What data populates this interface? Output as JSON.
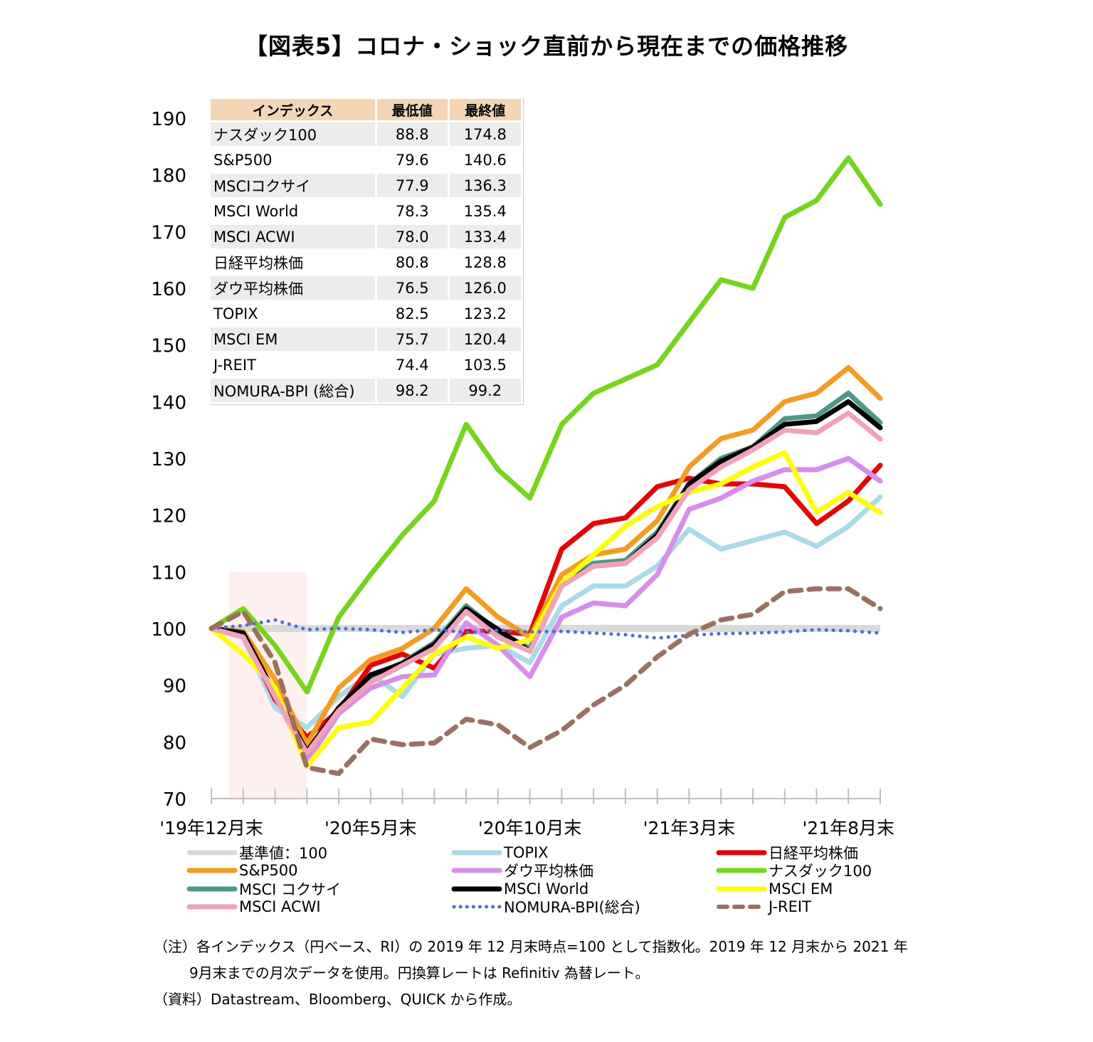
{
  "title": "【図表5】コロナ・ショック直前から現在までの価格推移",
  "table": {
    "headers": [
      "インデックス",
      "最低値",
      "最終値"
    ],
    "rows": [
      [
        "ナスダック100",
        "88.8",
        "174.8"
      ],
      [
        "S&P500",
        "79.6",
        "140.6"
      ],
      [
        "MSCIコクサイ",
        "77.9",
        "136.3"
      ],
      [
        "MSCI World",
        "78.3",
        "135.4"
      ],
      [
        "MSCI ACWI",
        "78.0",
        "133.4"
      ],
      [
        "日経平均株価",
        "80.8",
        "128.8"
      ],
      [
        "ダウ平均株価",
        "76.5",
        "126.0"
      ],
      [
        "TOPIX",
        "82.5",
        "123.2"
      ],
      [
        "MSCI EM",
        "75.7",
        "120.4"
      ],
      [
        "J-REIT",
        "74.4",
        "103.5"
      ],
      [
        "NOMURA-BPI (総合)",
        "98.2",
        "99.2"
      ]
    ]
  },
  "chart_data": {
    "type": "line",
    "ylim": [
      70,
      190
    ],
    "yticks": [
      70,
      80,
      90,
      100,
      110,
      120,
      130,
      140,
      150,
      160,
      170,
      180,
      190
    ],
    "x": [
      "2019-12",
      "2020-01",
      "2020-02",
      "2020-03",
      "2020-04",
      "2020-05",
      "2020-06",
      "2020-07",
      "2020-08",
      "2020-09",
      "2020-10",
      "2020-11",
      "2020-12",
      "2021-01",
      "2021-02",
      "2021-03",
      "2021-04",
      "2021-05",
      "2021-06",
      "2021-07",
      "2021-08",
      "2021-09"
    ],
    "xtick_labels": [
      {
        "index": 0,
        "label": "'19年12月末"
      },
      {
        "index": 5,
        "label": "'20年5月末"
      },
      {
        "index": 10,
        "label": "'20年10月末"
      },
      {
        "index": 15,
        "label": "'21年3月末"
      },
      {
        "index": 20,
        "label": "'21年8月末"
      }
    ],
    "shaded_range": {
      "x_start": "2020-01",
      "x_end": "2020-03",
      "y_top": 110,
      "color": "#fdf0ee"
    },
    "grid": false,
    "series": [
      {
        "name": "基準値：100",
        "color": "#d9d9d9",
        "style": "solid",
        "values": [
          100,
          100,
          100,
          100,
          100,
          100,
          100,
          100,
          100,
          100,
          100,
          100,
          100,
          100,
          100,
          100,
          100,
          100,
          100,
          100,
          100,
          100
        ]
      },
      {
        "name": "TOPIX",
        "color": "#a6dbe8",
        "style": "solid",
        "values": [
          100,
          98.5,
          86,
          82.5,
          88,
          92,
          88,
          95.5,
          96.5,
          97,
          94,
          104,
          107.5,
          107.5,
          111,
          117.5,
          114,
          115.5,
          117,
          114.5,
          118,
          123.2
        ]
      },
      {
        "name": "日経平均株価",
        "color": "#ee0000",
        "style": "solid",
        "values": [
          100,
          99,
          87.5,
          80.8,
          85.5,
          93.5,
          95.5,
          93,
          99.5,
          99.5,
          99,
          114,
          118.5,
          119.5,
          125,
          126.5,
          125.5,
          125.5,
          125,
          118.5,
          122.5,
          128.8
        ]
      },
      {
        "name": "S&P500",
        "color": "#f89a1c",
        "style": "solid",
        "values": [
          100,
          99.5,
          91,
          79.6,
          89.5,
          94.5,
          96.5,
          100,
          107,
          102,
          98.5,
          109.5,
          113,
          114,
          119,
          128.5,
          133.5,
          135,
          140,
          141.5,
          146,
          140.6
        ]
      },
      {
        "name": "ダウ平均株価",
        "color": "#d88cf0",
        "style": "solid",
        "values": [
          100,
          98.5,
          88.5,
          76.5,
          85,
          89.5,
          91.5,
          91.8,
          101,
          97,
          91.5,
          102,
          104.5,
          104,
          109.5,
          121,
          123,
          126,
          128,
          128,
          130,
          126
        ]
      },
      {
        "name": "ナスダック100",
        "color": "#72d815",
        "style": "solid",
        "values": [
          100,
          103.5,
          97,
          88.8,
          102,
          109.5,
          116.5,
          122.5,
          136,
          128,
          123,
          136,
          141.5,
          144,
          146.5,
          154,
          161.5,
          160,
          172.5,
          175.5,
          183,
          174.8
        ]
      },
      {
        "name": "MSCI コクサイ",
        "color": "#4a9a8a",
        "style": "solid",
        "values": [
          100,
          99,
          88.5,
          77.9,
          86,
          91.5,
          94,
          97.5,
          104,
          99.5,
          96.5,
          108,
          111.5,
          112,
          117,
          125.5,
          130,
          132,
          137,
          137.5,
          141.5,
          136.3
        ]
      },
      {
        "name": "MSCI World",
        "color": "#000000",
        "style": "solid",
        "values": [
          100,
          99.2,
          88.5,
          78.3,
          86,
          91.8,
          93.8,
          97.2,
          103.5,
          99.8,
          96,
          107.8,
          111,
          111.5,
          116.5,
          125.5,
          129.5,
          132,
          136,
          136.5,
          140,
          135.4
        ]
      },
      {
        "name": "MSCI EM",
        "color": "#ffff00",
        "style": "solid",
        "values": [
          100,
          95.5,
          89.5,
          75.7,
          82.5,
          83.5,
          89.5,
          95.5,
          98.5,
          96.5,
          98,
          108,
          113,
          118,
          121.5,
          124,
          125.5,
          128.5,
          131,
          120.5,
          124,
          120.4
        ]
      },
      {
        "name": "MSCI ACWI",
        "color": "#f4a0b8",
        "style": "solid",
        "values": [
          100,
          98.5,
          88,
          78,
          85.5,
          90.5,
          93.5,
          96.5,
          103,
          98.5,
          96,
          107.5,
          111,
          111.5,
          116,
          124.5,
          128.5,
          131.5,
          135,
          134.5,
          138,
          133.4
        ]
      },
      {
        "name": "NOMURA-BPI(総合)",
        "color": "#4472dd",
        "style": "dotted",
        "values": [
          100,
          100.5,
          101.5,
          99.8,
          100,
          99.8,
          99.3,
          99.8,
          99.3,
          99.7,
          99.4,
          99.5,
          99.2,
          98.9,
          98.3,
          98.8,
          99.1,
          99.2,
          99.4,
          99.8,
          99.6,
          99.2
        ]
      },
      {
        "name": "J-REIT",
        "color": "#9c7060",
        "style": "dashed",
        "values": [
          100,
          103,
          94,
          75.5,
          74.4,
          80.5,
          79.5,
          79.8,
          84,
          83,
          79,
          82,
          86.5,
          90,
          95,
          99,
          101.5,
          102.5,
          106.5,
          107,
          107,
          103.5
        ]
      }
    ]
  },
  "legend": [
    {
      "key": 0,
      "label": "基準値：100"
    },
    {
      "key": 1,
      "label": "TOPIX"
    },
    {
      "key": 2,
      "label": "日経平均株価"
    },
    {
      "key": 3,
      "label": "S&P500"
    },
    {
      "key": 4,
      "label": "ダウ平均株価"
    },
    {
      "key": 5,
      "label": "ナスダック100"
    },
    {
      "key": 6,
      "label": "MSCI コクサイ"
    },
    {
      "key": 7,
      "label": "MSCI World"
    },
    {
      "key": 8,
      "label": "MSCI EM"
    },
    {
      "key": 9,
      "label": "MSCI ACWI"
    },
    {
      "key": 10,
      "label": "NOMURA-BPI(総合)"
    },
    {
      "key": 11,
      "label": "J-REIT"
    }
  ],
  "notes": [
    "（注）各インデックス（円ベース、RI）の 2019 年 12 月末時点=100 として指数化。2019 年 12 月末から 2021 年",
    "9月末までの月次データを使用。円換算レートは Refinitiv 為替レート。",
    "（資料）Datastream、Bloomberg、QUICK から作成。"
  ]
}
